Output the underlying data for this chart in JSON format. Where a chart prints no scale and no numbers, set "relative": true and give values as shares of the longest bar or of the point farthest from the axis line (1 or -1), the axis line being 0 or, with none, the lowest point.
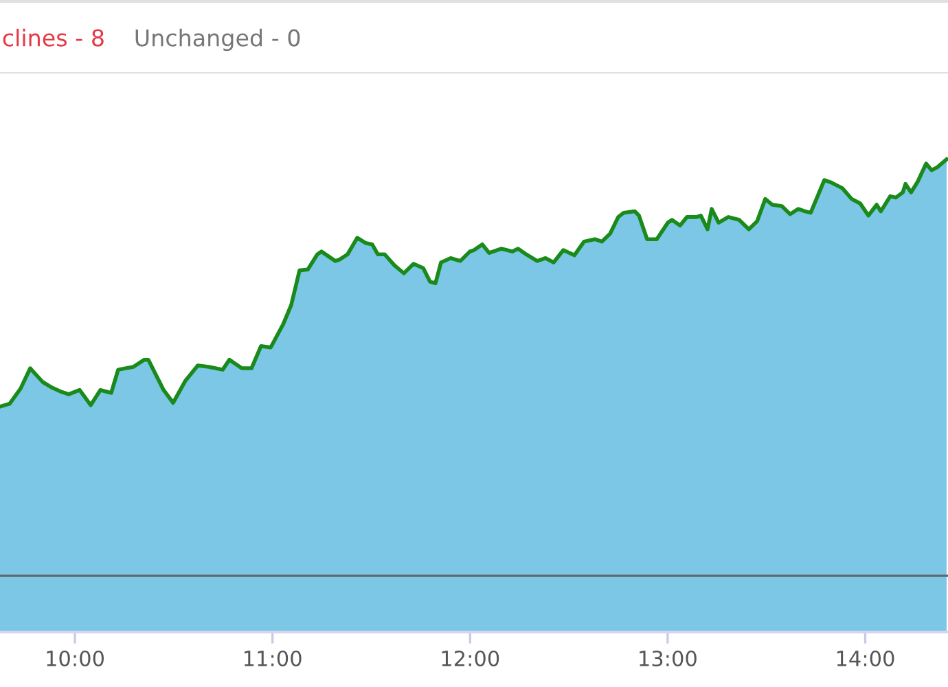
{
  "chart_data": {
    "type": "area",
    "relative": true,
    "x": [
      9.621,
      9.67,
      9.725,
      9.774,
      9.837,
      9.885,
      9.927,
      9.969,
      10.024,
      10.08,
      10.129,
      10.184,
      10.219,
      10.296,
      10.351,
      10.372,
      10.449,
      10.497,
      10.56,
      10.622,
      10.678,
      10.748,
      10.782,
      10.845,
      10.894,
      10.942,
      10.991,
      11.054,
      11.095,
      11.137,
      11.179,
      11.227,
      11.248,
      11.276,
      11.318,
      11.339,
      11.38,
      11.429,
      11.471,
      11.505,
      11.533,
      11.568,
      11.617,
      11.665,
      11.714,
      11.763,
      11.798,
      11.825,
      11.853,
      11.902,
      11.951,
      11.999,
      12.02,
      12.062,
      12.097,
      12.159,
      12.215,
      12.243,
      12.284,
      12.34,
      12.382,
      12.423,
      12.472,
      12.528,
      12.577,
      12.632,
      12.667,
      12.709,
      12.75,
      12.778,
      12.834,
      12.855,
      12.896,
      12.945,
      13.001,
      13.022,
      13.063,
      13.098,
      13.147,
      13.168,
      13.202,
      13.223,
      13.258,
      13.307,
      13.362,
      13.411,
      13.453,
      13.494,
      13.529,
      13.578,
      13.62,
      13.661,
      13.696,
      13.724,
      13.759,
      13.793,
      13.828,
      13.884,
      13.932,
      13.974,
      14.016,
      14.058,
      14.079,
      14.127,
      14.155,
      14.19,
      14.204,
      14.232,
      14.266,
      14.308,
      14.336,
      14.364,
      14.412
    ],
    "series": [
      {
        "color": "#7cc6e6",
        "values": [
          0.477,
          0.483,
          0.515,
          0.558,
          0.529,
          0.517,
          0.509,
          0.503,
          0.512,
          0.48,
          0.512,
          0.506,
          0.555,
          0.561,
          0.576,
          0.576,
          0.512,
          0.485,
          0.532,
          0.564,
          0.561,
          0.555,
          0.576,
          0.558,
          0.558,
          0.605,
          0.602,
          0.651,
          0.692,
          0.765,
          0.767,
          0.799,
          0.805,
          0.797,
          0.785,
          0.788,
          0.799,
          0.834,
          0.823,
          0.82,
          0.799,
          0.799,
          0.776,
          0.759,
          0.779,
          0.77,
          0.741,
          0.738,
          0.782,
          0.791,
          0.785,
          0.805,
          0.808,
          0.82,
          0.802,
          0.811,
          0.805,
          0.811,
          0.799,
          0.785,
          0.791,
          0.782,
          0.808,
          0.797,
          0.826,
          0.831,
          0.826,
          0.843,
          0.878,
          0.887,
          0.89,
          0.881,
          0.831,
          0.831,
          0.866,
          0.872,
          0.86,
          0.878,
          0.878,
          0.881,
          0.852,
          0.895,
          0.866,
          0.878,
          0.872,
          0.852,
          0.869,
          0.916,
          0.904,
          0.901,
          0.884,
          0.895,
          0.89,
          0.887,
          0.922,
          0.956,
          0.951,
          0.939,
          0.916,
          0.907,
          0.881,
          0.904,
          0.89,
          0.922,
          0.919,
          0.93,
          0.948,
          0.93,
          0.953,
          0.991,
          0.977,
          0.983,
          1
        ]
      },
      {
        "type": "line",
        "color": "#1a8a1a",
        "values": [
          0.477,
          0.483,
          0.515,
          0.558,
          0.529,
          0.517,
          0.509,
          0.503,
          0.512,
          0.48,
          0.512,
          0.506,
          0.555,
          0.561,
          0.576,
          0.576,
          0.512,
          0.485,
          0.532,
          0.564,
          0.561,
          0.555,
          0.576,
          0.558,
          0.558,
          0.605,
          0.602,
          0.651,
          0.692,
          0.765,
          0.767,
          0.799,
          0.805,
          0.797,
          0.785,
          0.788,
          0.799,
          0.834,
          0.823,
          0.82,
          0.799,
          0.799,
          0.776,
          0.759,
          0.779,
          0.77,
          0.741,
          0.738,
          0.782,
          0.791,
          0.785,
          0.805,
          0.808,
          0.82,
          0.802,
          0.811,
          0.805,
          0.811,
          0.799,
          0.785,
          0.791,
          0.782,
          0.808,
          0.797,
          0.826,
          0.831,
          0.826,
          0.843,
          0.878,
          0.887,
          0.89,
          0.881,
          0.831,
          0.831,
          0.866,
          0.872,
          0.86,
          0.878,
          0.878,
          0.881,
          0.852,
          0.895,
          0.866,
          0.878,
          0.872,
          0.852,
          0.869,
          0.916,
          0.904,
          0.901,
          0.884,
          0.895,
          0.89,
          0.887,
          0.922,
          0.956,
          0.951,
          0.939,
          0.916,
          0.907,
          0.881,
          0.904,
          0.89,
          0.922,
          0.919,
          0.93,
          0.948,
          0.93,
          0.953,
          0.991,
          0.977,
          0.983,
          1
        ]
      }
    ],
    "xlim": [
      9.621,
      14.419
    ],
    "xticks": [
      {
        "value": 10,
        "label": "10:00"
      },
      {
        "value": 11,
        "label": "11:00"
      },
      {
        "value": 12,
        "label": "12:00"
      },
      {
        "value": 13,
        "label": "13:00"
      },
      {
        "value": 14,
        "label": "14:00"
      }
    ],
    "ref_lines": [
      {
        "axis": "y",
        "value": 0.119,
        "color": "#5f6b6b"
      }
    ],
    "annotations": [
      "clines - 8",
      "Unchanged - 0"
    ],
    "grid": false,
    "legend": false,
    "line_style": "solid",
    "marker": "none"
  }
}
